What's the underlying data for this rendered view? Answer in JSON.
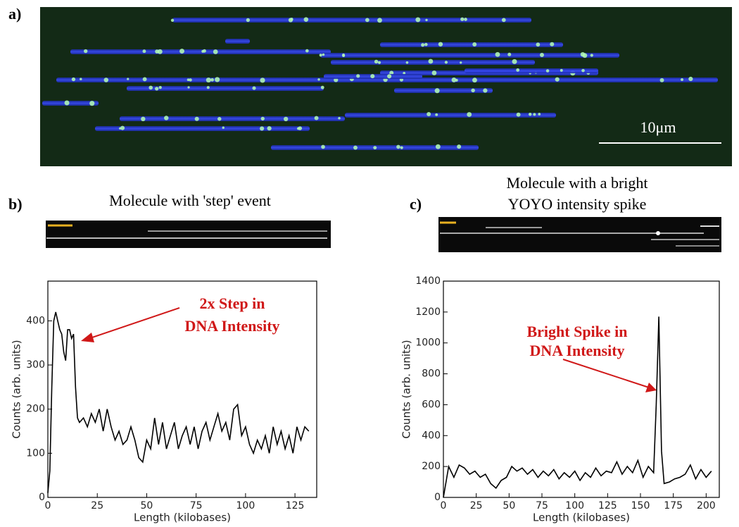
{
  "figure": {
    "panel_labels": [
      "a)",
      "b)",
      "c)"
    ],
    "scale_bar": "10μm"
  },
  "chart_data": [
    {
      "type": "line",
      "title": [
        "Molecule with 'step' event"
      ],
      "annotation": [
        "2x Step in",
        "DNA Intensity"
      ],
      "xlabel": "Length (kilobases)",
      "ylabel": "Counts (arb. units)",
      "color": "#000000",
      "x": [
        0,
        1,
        2,
        3,
        4,
        5,
        6,
        7,
        8,
        9,
        10,
        11,
        12,
        13,
        14,
        15,
        16,
        18,
        20,
        22,
        24,
        26,
        28,
        30,
        32,
        34,
        36,
        38,
        40,
        42,
        44,
        46,
        48,
        50,
        52,
        54,
        56,
        58,
        60,
        62,
        64,
        66,
        68,
        70,
        72,
        74,
        76,
        78,
        80,
        82,
        84,
        86,
        88,
        90,
        92,
        94,
        96,
        98,
        100,
        102,
        104,
        106,
        108,
        110,
        112,
        114,
        116,
        118,
        120,
        122,
        124,
        126,
        128,
        130,
        132
      ],
      "values": [
        10,
        60,
        250,
        400,
        420,
        400,
        380,
        370,
        330,
        310,
        380,
        380,
        360,
        370,
        250,
        180,
        170,
        180,
        160,
        190,
        170,
        200,
        150,
        200,
        160,
        130,
        150,
        120,
        130,
        160,
        130,
        90,
        80,
        130,
        110,
        180,
        120,
        170,
        110,
        140,
        170,
        110,
        140,
        160,
        120,
        160,
        110,
        150,
        170,
        130,
        160,
        190,
        150,
        170,
        130,
        200,
        210,
        140,
        160,
        120,
        100,
        130,
        110,
        140,
        100,
        160,
        120,
        150,
        110,
        140,
        100,
        160,
        130,
        160,
        150
      ],
      "xlim": [
        0,
        136
      ],
      "xticks": [
        0,
        25,
        50,
        75,
        100,
        125
      ],
      "ylim": [
        0,
        490
      ],
      "yticks": [
        0,
        100,
        200,
        300,
        400
      ]
    },
    {
      "type": "line",
      "title": [
        "Molecule with a bright",
        "YOYO intensity spike"
      ],
      "annotation": [
        "Bright Spike in",
        "DNA Intensity"
      ],
      "xlabel": "Length (kilobases)",
      "ylabel": "Counts (arb. units)",
      "color": "#000000",
      "x": [
        0,
        4,
        8,
        12,
        16,
        20,
        24,
        28,
        32,
        36,
        40,
        44,
        48,
        52,
        56,
        60,
        64,
        68,
        72,
        76,
        80,
        84,
        88,
        92,
        96,
        100,
        104,
        108,
        112,
        116,
        120,
        124,
        128,
        132,
        136,
        140,
        144,
        148,
        152,
        156,
        160,
        162,
        164,
        166,
        168,
        172,
        176,
        180,
        184,
        188,
        192,
        196,
        200,
        204
      ],
      "values": [
        0,
        200,
        130,
        210,
        190,
        150,
        170,
        130,
        150,
        90,
        60,
        110,
        130,
        200,
        170,
        190,
        150,
        180,
        130,
        170,
        140,
        180,
        120,
        160,
        130,
        170,
        110,
        160,
        130,
        190,
        140,
        170,
        160,
        230,
        150,
        200,
        160,
        240,
        130,
        200,
        160,
        600,
        1170,
        300,
        90,
        100,
        120,
        130,
        150,
        210,
        120,
        180,
        130,
        170
      ],
      "xlim": [
        0,
        210
      ],
      "xticks": [
        0,
        25,
        50,
        75,
        100,
        125,
        150,
        175,
        200
      ],
      "ylim": [
        0,
        1400
      ],
      "yticks": [
        0,
        200,
        400,
        600,
        800,
        1000,
        1200,
        1400
      ]
    }
  ]
}
